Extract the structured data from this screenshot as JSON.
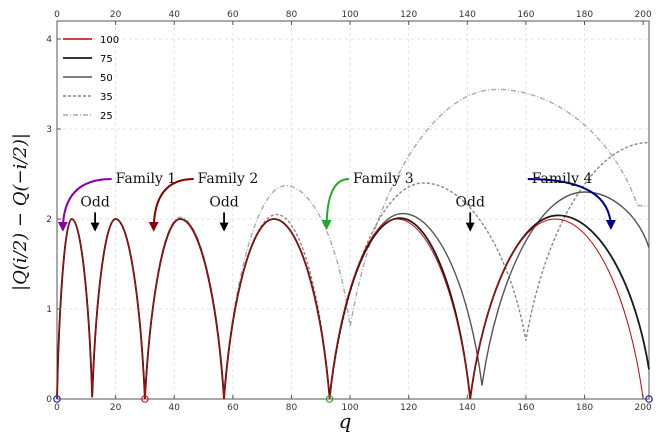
{
  "chart_data": {
    "type": "line",
    "xlabel": "q",
    "ylabel": "|Q(i/2) − Q(−i/2)|",
    "xlim": [
      0,
      202
    ],
    "ylim": [
      0,
      4.2
    ],
    "x_ticks": [
      "0",
      "20",
      "40",
      "60",
      "80",
      "100",
      "120",
      "140",
      "160",
      "180",
      "200"
    ],
    "y_ticks": [
      "0",
      "1",
      "2",
      "3",
      "4"
    ],
    "grid": true,
    "legend_position": "top-left",
    "series": [
      {
        "name": "100",
        "color": "#cc0000",
        "style": "solid",
        "x": [
          0,
          5,
          12,
          20,
          30,
          42,
          57,
          74,
          93,
          116,
          141,
          170,
          200
        ],
        "y": [
          0,
          2,
          0.02,
          2,
          0,
          2,
          0,
          2,
          0,
          2,
          0,
          2,
          0
        ]
      },
      {
        "name": "75",
        "color": "#1a1a1a",
        "style": "solid",
        "x": [
          0,
          5,
          12,
          20,
          30,
          42,
          57,
          74,
          93,
          117,
          141,
          171,
          202
        ],
        "y": [
          0,
          2,
          0.02,
          2,
          0,
          2,
          0,
          2,
          0.01,
          2.01,
          0,
          2.04,
          0.33
        ]
      },
      {
        "name": "50",
        "color": "#555555",
        "style": "solid",
        "x": [
          0,
          5,
          12,
          20,
          30,
          42,
          57,
          74,
          93,
          118,
          145,
          180,
          202
        ],
        "y": [
          0,
          2,
          0.02,
          2,
          0,
          2,
          0,
          2,
          0.02,
          2.06,
          0.15,
          2.3,
          1.68
        ]
      },
      {
        "name": "35",
        "color": "#888888",
        "style": "dashed",
        "x": [
          0,
          5,
          12,
          20,
          30,
          42,
          57,
          75,
          93,
          125,
          160,
          202
        ],
        "y": [
          0,
          2,
          0.02,
          2,
          0,
          2,
          0.02,
          2.05,
          0,
          2.4,
          0.65,
          2.85
        ]
      },
      {
        "name": "25",
        "color": "#aaaaaa",
        "style": "dashdot",
        "x": [
          0,
          5,
          12,
          20,
          30,
          42,
          57,
          78,
          100,
          150,
          198,
          202
        ],
        "y": [
          0,
          2,
          0.03,
          2,
          0.02,
          2.02,
          0.05,
          2.37,
          0.8,
          3.44,
          2.15,
          2.14
        ]
      }
    ],
    "markers": [
      {
        "x": 0,
        "y": 0,
        "color": "#1a1acc"
      },
      {
        "x": 30,
        "y": 0,
        "color": "#cc2222"
      },
      {
        "x": 93,
        "y": 0,
        "color": "#22aa22"
      },
      {
        "x": 202,
        "y": 0,
        "color": "#1a1acc"
      }
    ],
    "annotations": [
      {
        "text": "Family 1",
        "x": 20,
        "y": 2.4,
        "color": "#8800aa",
        "arrow_tip": [
          2,
          1.88
        ]
      },
      {
        "text": "Family 2",
        "x": 48,
        "y": 2.4,
        "color": "#8b0000",
        "arrow_tip": [
          33,
          1.88
        ]
      },
      {
        "text": "Family 3",
        "x": 101,
        "y": 2.4,
        "color": "#22aa22",
        "arrow_tip": [
          92,
          1.9
        ]
      },
      {
        "text": "Family 4",
        "x": 162,
        "y": 2.4,
        "color": "#00008b",
        "arrow_tip": [
          189,
          1.9
        ]
      },
      {
        "text": "Odd",
        "x": 13,
        "y": 2.14,
        "color": "#000000",
        "arrow_tip": [
          13,
          1.88
        ]
      },
      {
        "text": "Odd",
        "x": 57,
        "y": 2.14,
        "color": "#000000",
        "arrow_tip": [
          57,
          1.88
        ]
      },
      {
        "text": "Odd",
        "x": 141,
        "y": 2.14,
        "color": "#000000",
        "arrow_tip": [
          141,
          1.88
        ]
      }
    ]
  }
}
